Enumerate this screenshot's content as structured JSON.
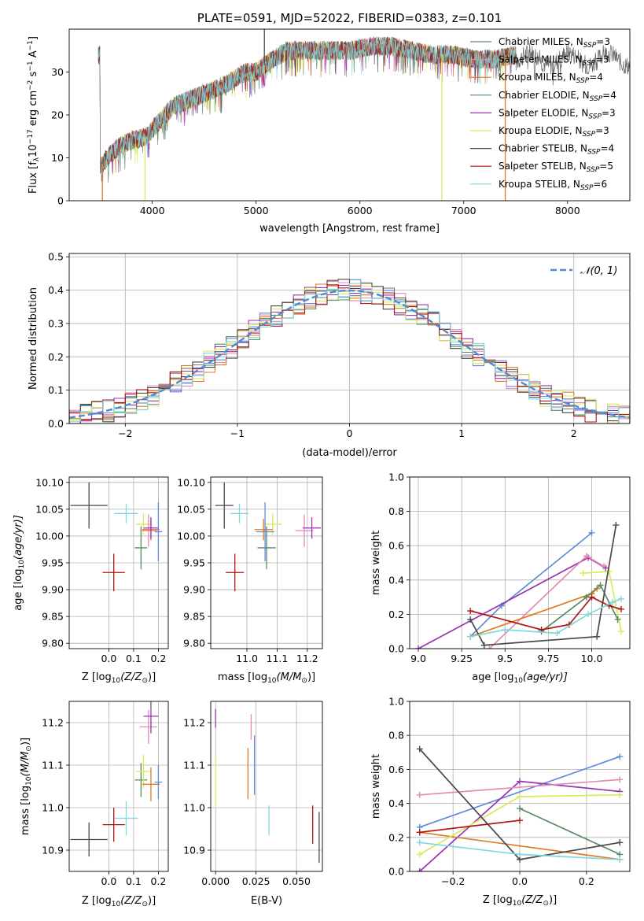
{
  "colors": {
    "Chabrier MILES": "#5f8b6b",
    "Salpeter MILES": "#e28ab8",
    "Kroupa MILES": "#e07a23",
    "Chabrier ELODIE": "#5a8a62",
    "Salpeter ELODIE": "#9a33b0",
    "Kroupa ELODIE": "#d9ea5a",
    "Chabrier STELIB": "#4a4a4a",
    "Salpeter STELIB": "#b01515",
    "Kroupa STELIB": "#7fd8dc"
  },
  "chart_data": [
    {
      "type": "line",
      "title": "PLATE=0591, MJD=52022, FIBERID=0383, z=0.101",
      "xlabel": "wavelength [Angstrom, rest frame]",
      "ylabel_main": "Flux [f",
      "ylabel_sub": "λ",
      "ylabel_rest": "10",
      "ylabel_exp": "−17",
      "ylabel_tail": " erg cm",
      "ylabel_exp2": "−2",
      "ylabel_s": " s",
      "ylabel_exp3": "−1",
      "ylabel_A": " A",
      "ylabel_exp4": "−1",
      "ylabel_end": "]",
      "xlim": [
        3200,
        8600
      ],
      "ylim": [
        0,
        40
      ],
      "xticks": [
        4000,
        5000,
        6000,
        7000,
        8000
      ],
      "yticks": [
        0,
        10,
        20,
        30
      ],
      "legend_position": "right",
      "legend": [
        {
          "label": "Chabrier MILES, N",
          "sub": "SSP",
          "tail": "=3"
        },
        {
          "label": "Salpeter MILES, N",
          "sub": "SSP",
          "tail": "=3"
        },
        {
          "label": "Kroupa MILES, N",
          "sub": "SSP",
          "tail": "=4"
        },
        {
          "label": "Chabrier ELODIE, N",
          "sub": "SSP",
          "tail": "=4"
        },
        {
          "label": "Salpeter ELODIE, N",
          "sub": "SSP",
          "tail": "=3"
        },
        {
          "label": "Kroupa ELODIE, N",
          "sub": "SSP",
          "tail": "=3"
        },
        {
          "label": "Chabrier STELIB, N",
          "sub": "SSP",
          "tail": "=4"
        },
        {
          "label": "Salpeter STELIB, N",
          "sub": "SSP",
          "tail": "=5"
        },
        {
          "label": "Kroupa STELIB, N",
          "sub": "SSP",
          "tail": "=6"
        }
      ],
      "spectrum_envelope": [
        [
          3500,
          8
        ],
        [
          3600,
          11
        ],
        [
          3700,
          13
        ],
        [
          3800,
          14
        ],
        [
          3950,
          15
        ],
        [
          4050,
          18
        ],
        [
          4200,
          22
        ],
        [
          4300,
          23
        ],
        [
          4500,
          25
        ],
        [
          4700,
          27
        ],
        [
          4900,
          30
        ],
        [
          5000,
          30
        ],
        [
          5100,
          32
        ],
        [
          5300,
          35
        ],
        [
          5500,
          35
        ],
        [
          5700,
          35
        ],
        [
          5900,
          35
        ],
        [
          6100,
          36
        ],
        [
          6300,
          36
        ],
        [
          6500,
          35
        ],
        [
          6700,
          34
        ],
        [
          6900,
          34
        ],
        [
          7100,
          33
        ],
        [
          7300,
          33
        ],
        [
          7500,
          34
        ]
      ],
      "spikes": [
        {
          "x": 3520,
          "y": 0
        },
        {
          "x": 3930,
          "y": 0
        },
        {
          "x": 5080,
          "y": 42
        },
        {
          "x": 6790,
          "y": 0
        },
        {
          "x": 7400,
          "y": 0
        }
      ]
    },
    {
      "type": "histogram",
      "xlabel": "(data-model)/error",
      "ylabel": "Normed distribution",
      "xlim": [
        -2.5,
        2.5
      ],
      "ylim": [
        0,
        0.51
      ],
      "xticks": [
        -2,
        -1,
        0,
        1,
        2
      ],
      "yticks": [
        0.0,
        0.1,
        0.2,
        0.3,
        0.4,
        0.5
      ],
      "legend": "𝒩(0, 1)",
      "legend_position": "top-right",
      "bin_width": 0.1
    },
    {
      "type": "scatter",
      "xlabel": "Z [log",
      "xlabel_sub": "10",
      "xlabel_tail": "(Z/Z",
      "xlabel_sym": "⊙",
      "xlabel_end": ")]",
      "ylabel": "age  [log",
      "ylabel_sub": "10",
      "ylabel_tail": "(age/yr)]",
      "xlim": [
        -0.16,
        0.24
      ],
      "ylim": [
        9.79,
        10.11
      ],
      "xticks": [
        0.0,
        0.1,
        0.2
      ],
      "yticks": [
        9.8,
        9.85,
        9.9,
        9.95,
        10.0,
        10.05,
        10.1
      ]
    },
    {
      "type": "scatter",
      "xlabel": "mass [log",
      "xlabel_sub": "10",
      "xlabel_tail": "(M/M",
      "xlabel_sym": "⊙",
      "xlabel_end": ")]",
      "xlim": [
        10.88,
        11.25
      ],
      "ylim": [
        9.79,
        10.11
      ],
      "xticks": [
        11.0,
        11.1,
        11.2
      ],
      "yticks": [
        9.8,
        9.85,
        9.9,
        9.95,
        10.0,
        10.05,
        10.1
      ]
    },
    {
      "type": "line",
      "xlabel": "age  [log",
      "xlabel_sub": "10",
      "xlabel_tail": "(age/yr)]",
      "ylabel": "mass weight",
      "xlim": [
        8.95,
        10.22
      ],
      "ylim": [
        0,
        1.0
      ],
      "xticks": [
        9.0,
        9.25,
        9.5,
        9.75,
        10.0
      ],
      "yticks": [
        0.0,
        0.2,
        0.4,
        0.6,
        0.8,
        1.0
      ]
    },
    {
      "type": "scatter",
      "xlabel": "Z [log",
      "xlabel_sub": "10",
      "xlabel_tail": "(Z/Z",
      "xlabel_sym": "⊙",
      "xlabel_end": ")]",
      "ylabel": "mass [log",
      "ylabel_sub": "10",
      "ylabel_tail": "(M/M",
      "ylabel_sym": "⊙",
      "ylabel_end": ")]",
      "xlim": [
        -0.16,
        0.24
      ],
      "ylim": [
        10.85,
        11.25
      ],
      "xticks": [
        0.0,
        0.1,
        0.2
      ],
      "yticks": [
        10.9,
        11.0,
        11.1,
        11.2
      ]
    },
    {
      "type": "scatter",
      "xlabel": "E(B-V)",
      "xlim": [
        -0.003,
        0.066
      ],
      "ylim": [
        10.85,
        11.25
      ],
      "xticks": [
        0.0,
        0.025,
        0.05
      ],
      "xticklabels": [
        "0.000",
        "0.025",
        "0.050"
      ],
      "yticks": [
        10.9,
        11.0,
        11.1,
        11.2
      ]
    },
    {
      "type": "line",
      "xlabel": "Z [log",
      "xlabel_sub": "10",
      "xlabel_tail": "(Z/Z",
      "xlabel_sym": "⊙",
      "xlabel_end": ")]",
      "ylabel": "mass weight",
      "xlim": [
        -0.33,
        0.33
      ],
      "ylim": [
        0,
        1.0
      ],
      "xticks": [
        -0.2,
        0.0,
        0.2
      ],
      "yticks": [
        0.0,
        0.2,
        0.4,
        0.6,
        0.8,
        1.0
      ]
    }
  ],
  "errbars_age_Z": [
    {
      "c": "#4a4a4a",
      "x": -0.08,
      "xe": 0.075,
      "y": 10.057,
      "ye": 0.043,
      "m": 10.925
    },
    {
      "c": "#b01515",
      "x": 0.02,
      "xe": 0.045,
      "y": 9.932,
      "ye": 0.035,
      "m": 10.96
    },
    {
      "c": "#7fd8dc",
      "x": 0.07,
      "xe": 0.048,
      "y": 10.042,
      "ye": 0.018,
      "m": 10.975
    },
    {
      "c": "#5a8a62",
      "x": 0.13,
      "xe": 0.025,
      "y": 9.978,
      "ye": 0.04,
      "m": 11.065
    },
    {
      "c": "#d9ea5a",
      "x": 0.14,
      "xe": 0.03,
      "y": 10.022,
      "ye": 0.02,
      "m": 11.085
    },
    {
      "c": "#e28ab8",
      "x": 0.16,
      "xe": 0.035,
      "y": 10.01,
      "ye": 0.03,
      "m": 11.19
    },
    {
      "c": "#e07a23",
      "x": 0.17,
      "xe": 0.035,
      "y": 10.012,
      "ye": 0.02,
      "m": 11.055
    },
    {
      "c": "#9a33b0",
      "x": 0.17,
      "xe": 0.03,
      "y": 10.015,
      "ye": 0.02,
      "m": 11.215
    },
    {
      "c": "#5f8bd9",
      "x": 0.2,
      "xe": 0.015,
      "y": 10.008,
      "ye": 0.055,
      "m": 11.06
    }
  ],
  "mass_ebv": [
    {
      "c": "#9a33b0",
      "x": 0.0,
      "m": 11.21,
      "me": 0.022
    },
    {
      "c": "#d9ea5a",
      "x": 0.0,
      "m": 11.06,
      "me": 0.06
    },
    {
      "c": "#e07a23",
      "x": 0.02,
      "m": 11.08,
      "me": 0.06
    },
    {
      "c": "#e28ab8",
      "x": 0.022,
      "m": 11.19,
      "me": 0.03
    },
    {
      "c": "#5f8bd9",
      "x": 0.024,
      "m": 11.1,
      "me": 0.07
    },
    {
      "c": "#7fd8dc",
      "x": 0.033,
      "m": 10.97,
      "me": 0.035
    },
    {
      "c": "#b01515",
      "x": 0.06,
      "m": 10.96,
      "me": 0.045
    },
    {
      "c": "#4a4a4a",
      "x": 0.064,
      "m": 10.93,
      "me": 0.06
    }
  ],
  "weights_age": [
    {
      "c": "#5f8bd9",
      "pts": [
        [
          9.3,
          0.07
        ],
        [
          9.48,
          0.25
        ],
        [
          10.0,
          0.675
        ]
      ]
    },
    {
      "c": "#9a33b0",
      "pts": [
        [
          9.0,
          0.0
        ],
        [
          9.98,
          0.53
        ],
        [
          10.08,
          0.47
        ]
      ]
    },
    {
      "c": "#e28ab8",
      "pts": [
        [
          9.41,
          0.0
        ],
        [
          9.97,
          0.54
        ],
        [
          10.07,
          0.48
        ]
      ]
    },
    {
      "c": "#e07a23",
      "pts": [
        [
          9.3,
          0.07
        ],
        [
          10.0,
          0.32
        ],
        [
          10.03,
          0.35
        ]
      ]
    },
    {
      "c": "#d9ea5a",
      "pts": [
        [
          9.95,
          0.44
        ],
        [
          10.1,
          0.45
        ],
        [
          10.17,
          0.1
        ]
      ]
    },
    {
      "c": "#5a8a62",
      "pts": [
        [
          9.71,
          0.1
        ],
        [
          9.97,
          0.3
        ],
        [
          10.05,
          0.37
        ],
        [
          10.15,
          0.17
        ]
      ]
    },
    {
      "c": "#4a4a4a",
      "pts": [
        [
          9.3,
          0.17
        ],
        [
          9.38,
          0.02
        ],
        [
          10.03,
          0.07
        ],
        [
          10.14,
          0.72
        ]
      ]
    },
    {
      "c": "#b01515",
      "pts": [
        [
          9.3,
          0.22
        ],
        [
          9.71,
          0.11
        ],
        [
          9.87,
          0.14
        ],
        [
          10.0,
          0.3
        ],
        [
          10.1,
          0.25
        ],
        [
          10.17,
          0.23
        ]
      ]
    },
    {
      "c": "#7fd8dc",
      "pts": [
        [
          9.3,
          0.07
        ],
        [
          9.5,
          0.11
        ],
        [
          9.8,
          0.09
        ],
        [
          9.98,
          0.2
        ],
        [
          10.12,
          0.27
        ],
        [
          10.17,
          0.29
        ]
      ]
    }
  ],
  "weights_Z": [
    {
      "c": "#5f8bd9",
      "pts": [
        [
          -0.3,
          0.26
        ],
        [
          0.3,
          0.675
        ]
      ]
    },
    {
      "c": "#9a33b0",
      "pts": [
        [
          -0.3,
          0.0
        ],
        [
          0.0,
          0.53
        ],
        [
          0.3,
          0.47
        ]
      ]
    },
    {
      "c": "#e28ab8",
      "pts": [
        [
          -0.3,
          0.45
        ],
        [
          0.3,
          0.54
        ]
      ]
    },
    {
      "c": "#e07a23",
      "pts": [
        [
          -0.3,
          0.23
        ],
        [
          0.3,
          0.07
        ]
      ]
    },
    {
      "c": "#d9ea5a",
      "pts": [
        [
          -0.3,
          0.1
        ],
        [
          0.0,
          0.44
        ],
        [
          0.3,
          0.45
        ]
      ]
    },
    {
      "c": "#5a8a62",
      "pts": [
        [
          0.0,
          0.37
        ],
        [
          0.3,
          0.1
        ]
      ]
    },
    {
      "c": "#4a4a4a",
      "pts": [
        [
          -0.3,
          0.72
        ],
        [
          0.0,
          0.07
        ],
        [
          0.3,
          0.17
        ]
      ]
    },
    {
      "c": "#b01515",
      "pts": [
        [
          -0.3,
          0.23
        ],
        [
          0.0,
          0.3
        ]
      ]
    },
    {
      "c": "#7fd8dc",
      "pts": [
        [
          -0.3,
          0.17
        ],
        [
          0.0,
          0.1
        ],
        [
          0.3,
          0.07
        ]
      ]
    }
  ]
}
